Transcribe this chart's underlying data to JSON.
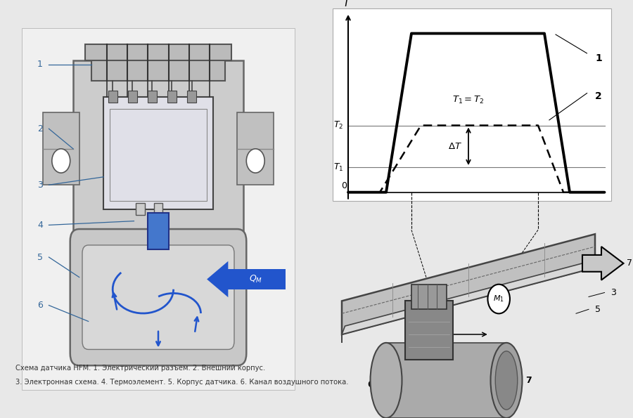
{
  "bg_color": "#e8e8e8",
  "left_bg": "#f5f5f5",
  "right_bg": "#e8e8e8",
  "caption_line1": "Схема датчика НFМ. 1. Электрический разъем. 2. Внешний корпус.",
  "caption_line2": "3. Электронная схема. 4. Термоэлемент. 5. Корпус датчика. 6. Канал воздушного потока.",
  "caption_fontsize": 8.0,
  "arrow_color": "#1144bb",
  "arrow_fill": "#2255cc",
  "gray_light": "#d4d4d4",
  "gray_med": "#b8b8b8",
  "gray_dark": "#888888",
  "white": "#ffffff",
  "black": "#222222"
}
